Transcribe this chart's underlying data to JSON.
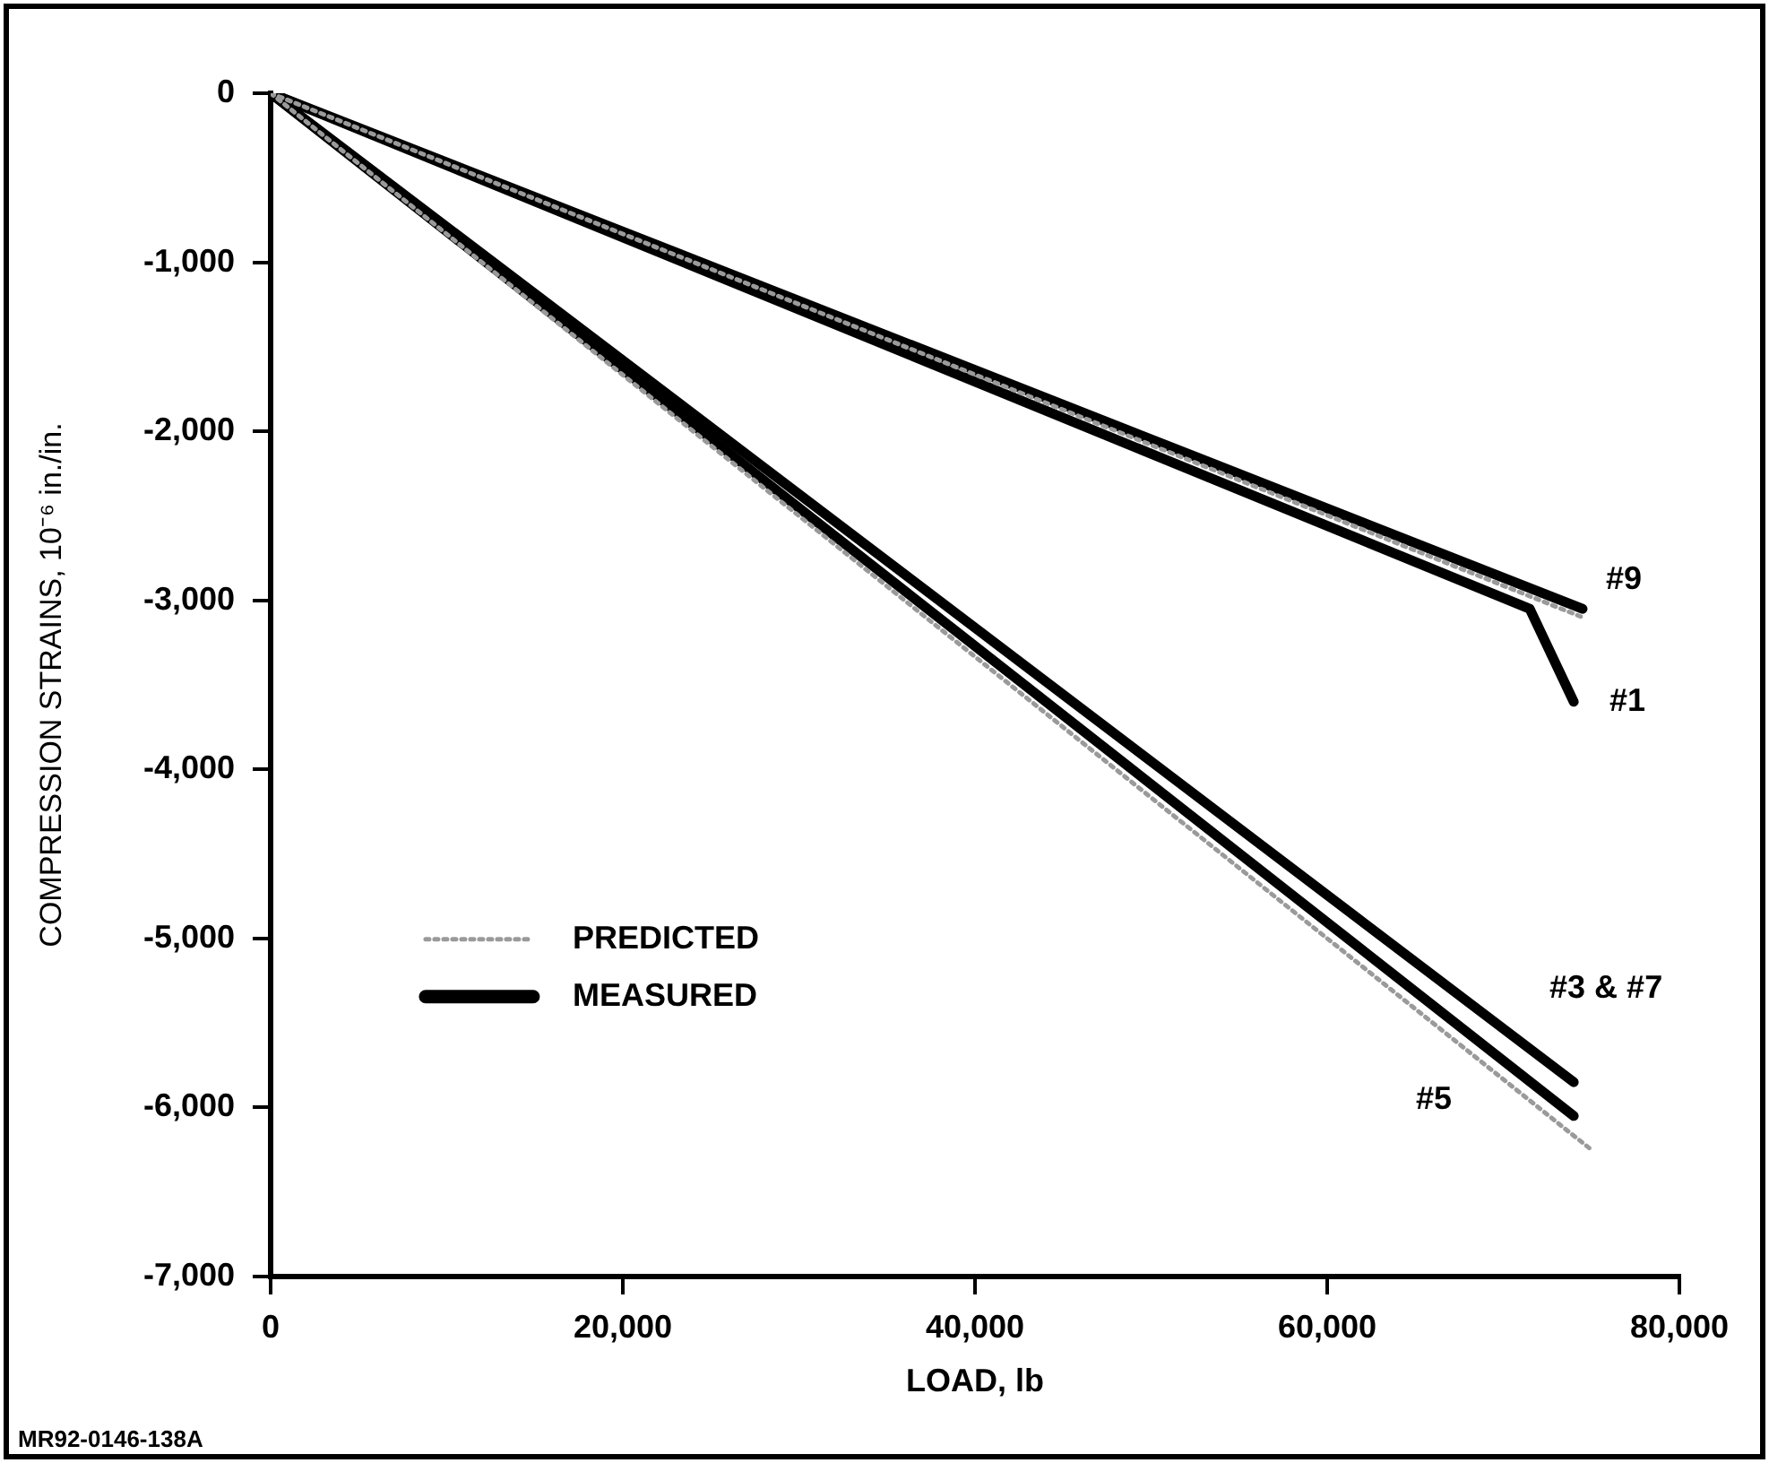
{
  "chart_data": {
    "type": "line",
    "xlabel": "LOAD, lb",
    "ylabel": "COMPRESSION STRAINS, 10⁻⁶ in./in.",
    "xlim": [
      0,
      80000
    ],
    "ylim": [
      -7000,
      0
    ],
    "xticks": [
      0,
      {
        "value": 20000,
        "label": "20,000"
      },
      {
        "value": 40000,
        "label": "40,000"
      },
      {
        "value": 60000,
        "label": "60,000"
      },
      {
        "value": 80000,
        "label": "80,000"
      }
    ],
    "yticks": [
      {
        "value": -7000,
        "label": "-7,000"
      },
      {
        "value": -6000,
        "label": "-6,000"
      },
      {
        "value": -5000,
        "label": "-5,000"
      },
      {
        "value": -4000,
        "label": "-4,000"
      },
      {
        "value": -3000,
        "label": "-3,000"
      },
      {
        "value": -2000,
        "label": "-2,000"
      },
      {
        "value": -1000,
        "label": "-1,000"
      },
      0
    ],
    "grid": false,
    "legend": "left",
    "marker": "none",
    "series": [
      {
        "name": "PREDICTED",
        "color": "#9a9a9a",
        "line_style": "dotted",
        "x": [
          0,
          74500
        ],
        "values": [
          0,
          -3100
        ]
      },
      {
        "color": "#9a9a9a",
        "line_style": "dotted",
        "x": [
          0,
          75000
        ],
        "values": [
          0,
          -6250
        ]
      },
      {
        "name": "MEASURED",
        "color": "#000000",
        "line_style": "solid",
        "x": [
          0,
          74500
        ],
        "values": [
          0,
          -3050
        ]
      },
      {
        "color": "#000000",
        "line_style": "solid",
        "x": [
          0,
          71500,
          74000
        ],
        "values": [
          0,
          -3050,
          -3600
        ]
      },
      {
        "color": "#000000",
        "line_style": "solid",
        "x": [
          0,
          74000
        ],
        "values": [
          0,
          -5850
        ]
      },
      {
        "color": "#000000",
        "line_style": "solid",
        "x": [
          0,
          74000
        ],
        "values": [
          0,
          -6050
        ]
      }
    ],
    "annotations": [
      "#9",
      "#1",
      "#3 & #7",
      "#5",
      "MR92-0146-138A"
    ]
  }
}
